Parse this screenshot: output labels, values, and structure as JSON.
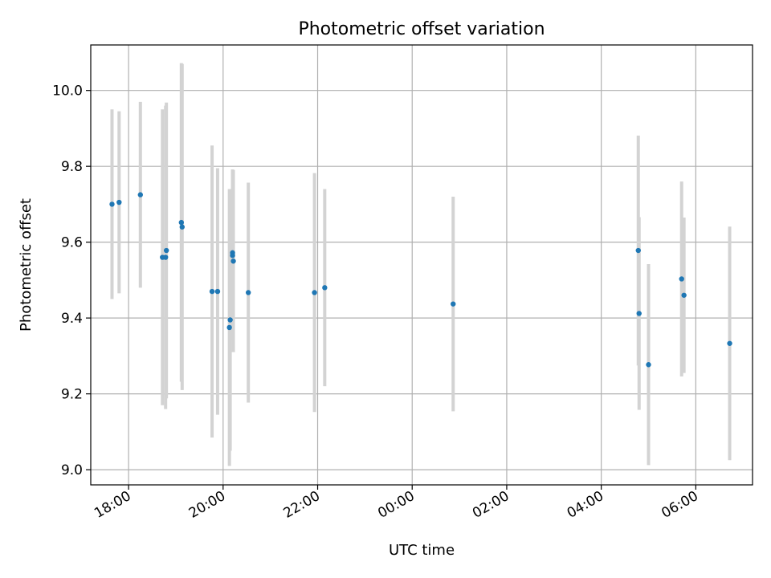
{
  "chart_data": {
    "type": "scatter",
    "title": "Photometric offset variation",
    "xlabel": "UTC time",
    "ylabel": "Photometric offset",
    "x_range": [
      "17:12",
      "07:12"
    ],
    "ylim": [
      8.96,
      10.12
    ],
    "x_ticks": [
      "18:00",
      "20:00",
      "22:00",
      "00:00",
      "02:00",
      "04:00",
      "06:00"
    ],
    "y_ticks": [
      "9.0",
      "9.2",
      "9.4",
      "9.6",
      "9.8",
      "10.0"
    ],
    "grid": true,
    "marker_color": "#1f77b4",
    "errorbar_color": "#d3d3d3",
    "points": [
      {
        "t": "17:39",
        "y": 9.7,
        "err": 0.25
      },
      {
        "t": "17:48",
        "y": 9.705,
        "err": 0.24
      },
      {
        "t": "18:15",
        "y": 9.725,
        "err": 0.245
      },
      {
        "t": "18:43",
        "y": 9.56,
        "err": 0.39
      },
      {
        "t": "18:47",
        "y": 9.56,
        "err": 0.4
      },
      {
        "t": "18:48",
        "y": 9.578,
        "err": 0.39
      },
      {
        "t": "19:07",
        "y": 9.652,
        "err": 0.42
      },
      {
        "t": "19:08",
        "y": 9.64,
        "err": 0.43
      },
      {
        "t": "19:46",
        "y": 9.47,
        "err": 0.385
      },
      {
        "t": "19:53",
        "y": 9.47,
        "err": 0.325
      },
      {
        "t": "20:08",
        "y": 9.375,
        "err": 0.365
      },
      {
        "t": "20:09",
        "y": 9.395,
        "err": 0.345
      },
      {
        "t": "20:12",
        "y": 9.572,
        "err": 0.22
      },
      {
        "t": "20:12",
        "y": 9.565,
        "err": 0.225
      },
      {
        "t": "20:13",
        "y": 9.55,
        "err": 0.24
      },
      {
        "t": "20:32",
        "y": 9.467,
        "err": 0.29
      },
      {
        "t": "21:56",
        "y": 9.467,
        "err": 0.315
      },
      {
        "t": "22:09",
        "y": 9.48,
        "err": 0.26
      },
      {
        "t": "00:52",
        "y": 9.437,
        "err": 0.283
      },
      {
        "t": "04:47",
        "y": 9.578,
        "err": 0.303
      },
      {
        "t": "04:48",
        "y": 9.412,
        "err": 0.254
      },
      {
        "t": "05:00",
        "y": 9.277,
        "err": 0.265
      },
      {
        "t": "05:42",
        "y": 9.503,
        "err": 0.257
      },
      {
        "t": "05:45",
        "y": 9.46,
        "err": 0.205
      },
      {
        "t": "06:43",
        "y": 9.333,
        "err": 0.308
      }
    ]
  }
}
